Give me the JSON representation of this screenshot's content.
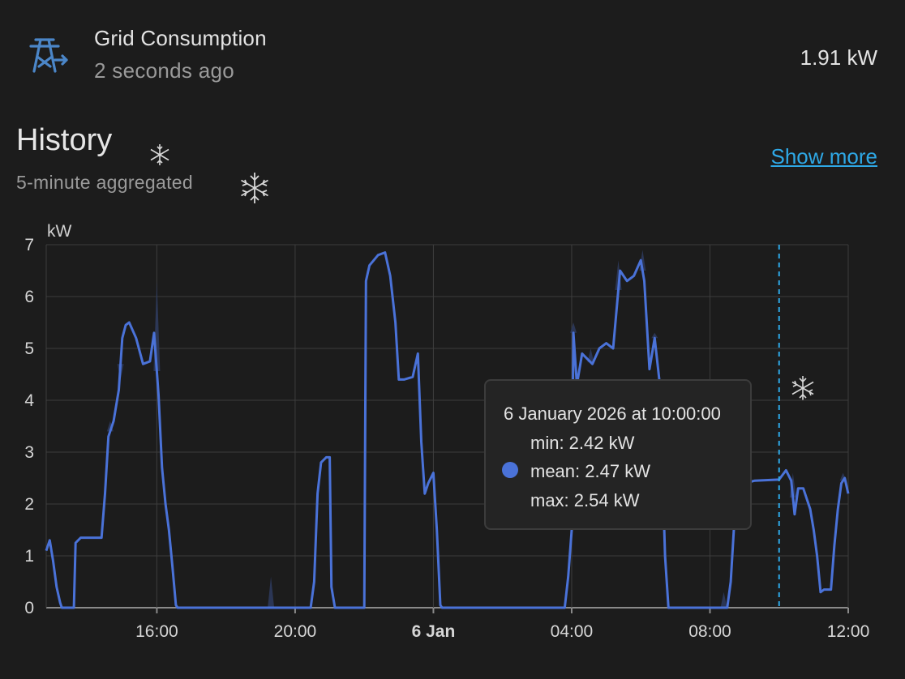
{
  "entity": {
    "name": "Grid Consumption",
    "last_changed": "2 seconds ago",
    "state": "1.91 kW",
    "icon": "transmission-tower-export-icon"
  },
  "history": {
    "title": "History",
    "subtitle": "5-minute aggregated",
    "show_more": "Show more"
  },
  "colors": {
    "accent": "#2ea8e6",
    "series": "#4a72d8",
    "background": "#1c1c1c"
  },
  "chart_data": {
    "type": "line",
    "unit_label": "kW",
    "ylim": [
      0,
      7
    ],
    "y_ticks": [
      "0",
      "1",
      "2",
      "3",
      "4",
      "5",
      "6",
      "7"
    ],
    "x_tick_labels": [
      "16:00",
      "20:00",
      "6 Jan",
      "04:00",
      "08:00",
      "12:00"
    ],
    "x_range_hours": [
      12.8,
      36.0
    ],
    "grid": true,
    "cursor_hour": 34.0,
    "series": [
      {
        "values": [
          [
            12.8,
            1.1
          ],
          [
            12.9,
            1.3
          ],
          [
            13.0,
            0.9
          ],
          [
            13.1,
            0.4
          ],
          [
            13.2,
            0.1
          ],
          [
            13.25,
            0
          ],
          [
            13.6,
            0
          ],
          [
            13.65,
            1.25
          ],
          [
            13.8,
            1.35
          ],
          [
            14.2,
            1.35
          ],
          [
            14.4,
            1.35
          ],
          [
            14.5,
            2.2
          ],
          [
            14.6,
            3.3
          ],
          [
            14.75,
            3.6
          ],
          [
            14.9,
            4.2
          ],
          [
            15.0,
            5.2
          ],
          [
            15.1,
            5.45
          ],
          [
            15.2,
            5.5
          ],
          [
            15.4,
            5.2
          ],
          [
            15.6,
            4.7
          ],
          [
            15.8,
            4.75
          ],
          [
            15.92,
            5.3
          ],
          [
            16.05,
            4.1
          ],
          [
            16.15,
            2.7
          ],
          [
            16.25,
            2.0
          ],
          [
            16.35,
            1.5
          ],
          [
            16.45,
            0.8
          ],
          [
            16.55,
            0.05
          ],
          [
            16.6,
            0
          ],
          [
            19.3,
            0
          ],
          [
            20.45,
            0
          ],
          [
            20.55,
            0.5
          ],
          [
            20.65,
            2.2
          ],
          [
            20.75,
            2.8
          ],
          [
            20.9,
            2.9
          ],
          [
            21.0,
            2.9
          ],
          [
            21.05,
            0.4
          ],
          [
            21.15,
            0
          ],
          [
            22.0,
            0
          ],
          [
            22.05,
            6.3
          ],
          [
            22.15,
            6.6
          ],
          [
            22.4,
            6.8
          ],
          [
            22.6,
            6.85
          ],
          [
            22.75,
            6.4
          ],
          [
            22.9,
            5.5
          ],
          [
            23.0,
            4.4
          ],
          [
            23.15,
            4.4
          ],
          [
            23.4,
            4.45
          ],
          [
            23.55,
            4.9
          ],
          [
            23.65,
            3.2
          ],
          [
            23.75,
            2.2
          ],
          [
            23.85,
            2.4
          ],
          [
            24.0,
            2.6
          ],
          [
            24.1,
            1.5
          ],
          [
            24.2,
            0.05
          ],
          [
            24.25,
            0
          ],
          [
            27.8,
            0
          ],
          [
            27.9,
            0.6
          ],
          [
            28.0,
            1.5
          ],
          [
            28.05,
            5.3
          ],
          [
            28.15,
            4.3
          ],
          [
            28.3,
            4.9
          ],
          [
            28.45,
            4.8
          ],
          [
            28.6,
            4.7
          ],
          [
            28.8,
            5.0
          ],
          [
            29.0,
            5.1
          ],
          [
            29.2,
            5.0
          ],
          [
            29.4,
            6.5
          ],
          [
            29.6,
            6.3
          ],
          [
            29.8,
            6.4
          ],
          [
            30.0,
            6.7
          ],
          [
            30.1,
            6.3
          ],
          [
            30.25,
            4.6
          ],
          [
            30.4,
            5.2
          ],
          [
            30.55,
            4.3
          ],
          [
            30.7,
            1.0
          ],
          [
            30.8,
            0
          ],
          [
            32.5,
            0
          ],
          [
            32.6,
            0.5
          ],
          [
            32.7,
            1.6
          ],
          [
            32.8,
            2.3
          ],
          [
            33.0,
            2.4
          ],
          [
            33.3,
            2.45
          ],
          [
            34.0,
            2.47
          ],
          [
            34.2,
            2.65
          ],
          [
            34.35,
            2.45
          ],
          [
            34.45,
            1.8
          ],
          [
            34.55,
            2.3
          ],
          [
            34.7,
            2.3
          ],
          [
            34.9,
            1.9
          ],
          [
            35.0,
            1.5
          ],
          [
            35.1,
            1.0
          ],
          [
            35.2,
            0.3
          ],
          [
            35.3,
            0.35
          ],
          [
            35.5,
            0.35
          ],
          [
            35.6,
            1.2
          ],
          [
            35.7,
            1.9
          ],
          [
            35.8,
            2.4
          ],
          [
            35.9,
            2.5
          ],
          [
            36.0,
            2.2
          ]
        ],
        "max_spikes": [
          [
            14.65,
            3.6
          ],
          [
            14.95,
            4.4
          ],
          [
            16.0,
            6.3
          ],
          [
            19.3,
            0.6
          ],
          [
            28.05,
            5.5
          ],
          [
            28.55,
            5.0
          ],
          [
            29.35,
            6.7
          ],
          [
            30.05,
            6.9
          ],
          [
            30.4,
            5.3
          ],
          [
            32.4,
            0.3
          ],
          [
            34.4,
            2.6
          ],
          [
            35.85,
            2.6
          ]
        ]
      }
    ],
    "tooltip": {
      "time": "6 January 2026 at 10:00:00",
      "min": "min: 2.42 kW",
      "mean": "mean: 2.47 kW",
      "max": "max: 2.54 kW"
    }
  }
}
